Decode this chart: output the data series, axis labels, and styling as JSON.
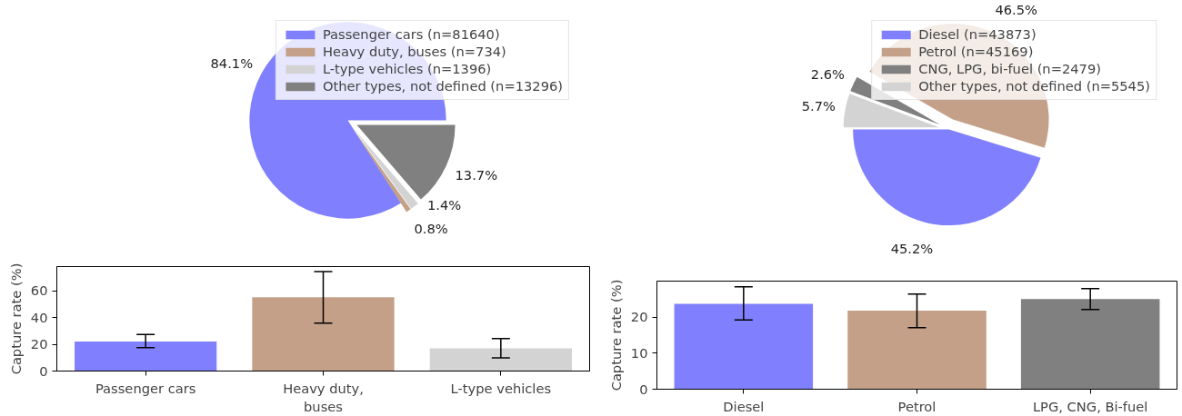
{
  "chart_data": [
    {
      "type": "pie",
      "categories": [
        "Passenger cars (n=81640)",
        "Heavy duty, buses (n=734)",
        "L-type vehicles (n=1396)",
        "Other types, not defined (n=13296)"
      ],
      "values": [
        84.1,
        0.8,
        1.4,
        13.7
      ],
      "colors": [
        "#8080ff",
        "#c4a088",
        "#d3d3d3",
        "#808080"
      ],
      "value_labels": [
        "84.1%",
        "0.8%",
        "1.4%",
        "13.7%"
      ],
      "legend": "top right"
    },
    {
      "type": "pie",
      "categories": [
        "Diesel (n=43873)",
        "Petrol (n=45169)",
        "CNG, LPG, bi-fuel (n=2479)",
        "Other types, not defined (n=5545)"
      ],
      "values": [
        45.2,
        46.5,
        2.6,
        5.7
      ],
      "colors": [
        "#8080ff",
        "#c4a088",
        "#808080",
        "#d3d3d3"
      ],
      "value_labels": [
        "45.2%",
        "46.5%",
        "2.6%",
        "5.7%"
      ],
      "legend": "top right"
    },
    {
      "type": "bar",
      "ylabel": "Capture rate (%)",
      "categories": [
        "Passenger cars",
        "Heavy duty,\nbuses",
        "L-type vehicles"
      ],
      "values": [
        22.1,
        55.1,
        16.9
      ],
      "colors": [
        "#8080ff",
        "#c4a088",
        "#d3d3d3"
      ],
      "errors": [
        [
          17.4,
          27.3
        ],
        [
          35.8,
          74.3
        ],
        [
          9.9,
          24.2
        ]
      ],
      "ylim": [
        0,
        78
      ],
      "yticks": [
        0,
        20,
        40,
        60
      ]
    },
    {
      "type": "bar",
      "ylabel": "Capture rate (%)",
      "categories": [
        "Diesel",
        "Petrol",
        "LPG, CNG, Bi-fuel"
      ],
      "values": [
        23.7,
        21.8,
        25.0
      ],
      "colors": [
        "#8080ff",
        "#c4a088",
        "#808080"
      ],
      "errors": [
        [
          19.2,
          28.4
        ],
        [
          17.1,
          26.4
        ],
        [
          22.1,
          27.9
        ]
      ],
      "ylim": [
        0,
        30
      ],
      "yticks": [
        0,
        10,
        20
      ]
    }
  ]
}
